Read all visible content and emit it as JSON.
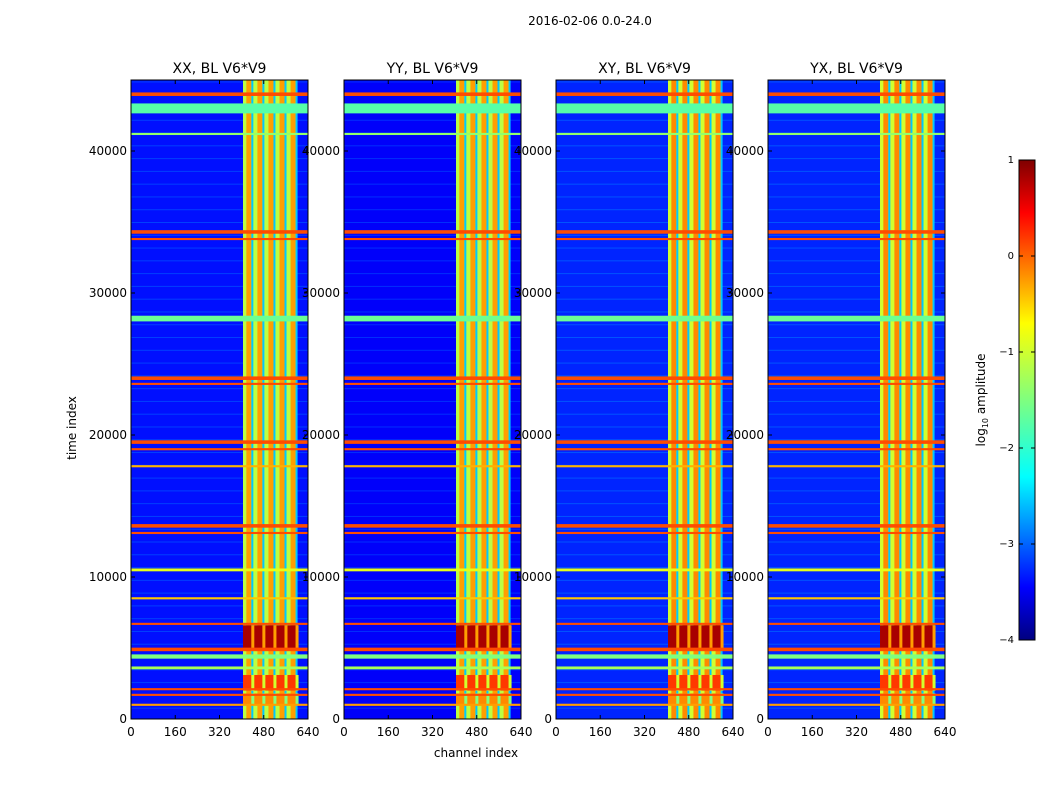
{
  "figure_title": "2016-02-06 0.0-24.0",
  "colors": {
    "colormap": [
      "#00007f",
      "#0000ff",
      "#007fff",
      "#00ffff",
      "#7fff7f",
      "#ffff00",
      "#ff7f00",
      "#ff0000",
      "#7f0000"
    ],
    "background": "#ffffff",
    "axis": "#000000"
  },
  "chart_data": {
    "type": "heatmap",
    "shared": {
      "xlabel": "channel index",
      "ylabel": "time index",
      "xlim": [
        0,
        640
      ],
      "ylim": [
        0,
        45000
      ],
      "xticks": [
        0,
        160,
        320,
        480,
        640
      ],
      "yticks": [
        0,
        10000,
        20000,
        30000,
        40000
      ],
      "colorbar": {
        "label_prefix": "log",
        "label_sub": "10",
        "label_suffix": " amplitude",
        "vmin": -4,
        "vmax": 1,
        "ticks": [
          -4,
          -3,
          -2,
          -1,
          0,
          1
        ],
        "tick_labels": [
          "−4",
          "−3",
          "−2",
          "−1",
          "0",
          "1"
        ],
        "colormap": "jet"
      }
    },
    "panels": [
      {
        "title": "XX, BL V6*V9",
        "background_log_amp": -3.3,
        "signal_band_channels": [
          405,
          600
        ],
        "signal_log_amp": -1.2
      },
      {
        "title": "YY, BL V6*V9",
        "background_log_amp": -3.4,
        "signal_band_channels": [
          405,
          600
        ],
        "signal_log_amp": -1.2
      },
      {
        "title": "XY, BL V6*V9",
        "background_log_amp": -3.2,
        "signal_band_channels": [
          405,
          600
        ],
        "signal_log_amp": -1.1
      },
      {
        "title": "YX, BL V6*V9",
        "background_log_amp": -3.2,
        "signal_band_channels": [
          405,
          600
        ],
        "signal_log_amp": -1.1
      }
    ],
    "strong_rfi_bands": [
      {
        "range": [
          5000,
          6600
        ],
        "log_amp": 0.8
      },
      {
        "range": [
          2000,
          3100
        ],
        "log_amp": 0.1
      },
      {
        "range": [
          1000,
          1800
        ],
        "log_amp": -0.3
      }
    ],
    "flagged_time_rows": [
      {
        "t": 44000,
        "w": 250,
        "log_amp": 0
      },
      {
        "t": 43000,
        "w": 700,
        "log_amp": -1.7
      },
      {
        "t": 41200,
        "w": 150,
        "log_amp": -1.4
      },
      {
        "t": 34300,
        "w": 250,
        "log_amp": 0
      },
      {
        "t": 33800,
        "w": 150,
        "log_amp": 0
      },
      {
        "t": 28200,
        "w": 400,
        "log_amp": -1.6
      },
      {
        "t": 24000,
        "w": 250,
        "log_amp": 0
      },
      {
        "t": 23600,
        "w": 150,
        "log_amp": 0
      },
      {
        "t": 19500,
        "w": 250,
        "log_amp": 0
      },
      {
        "t": 19000,
        "w": 150,
        "log_amp": 0
      },
      {
        "t": 17800,
        "w": 150,
        "log_amp": -0.5
      },
      {
        "t": 13600,
        "w": 250,
        "log_amp": 0
      },
      {
        "t": 13100,
        "w": 150,
        "log_amp": 0
      },
      {
        "t": 10500,
        "w": 200,
        "log_amp": -1.0
      },
      {
        "t": 8500,
        "w": 150,
        "log_amp": -0.6
      },
      {
        "t": 6700,
        "w": 150,
        "log_amp": 0
      },
      {
        "t": 4900,
        "w": 250,
        "log_amp": 0
      },
      {
        "t": 4400,
        "w": 300,
        "log_amp": -1.5
      },
      {
        "t": 3600,
        "w": 200,
        "log_amp": -1.3
      },
      {
        "t": 2100,
        "w": 150,
        "log_amp": 0
      },
      {
        "t": 1700,
        "w": 150,
        "log_amp": 0
      },
      {
        "t": 1000,
        "w": 150,
        "log_amp": -0.4
      }
    ]
  }
}
